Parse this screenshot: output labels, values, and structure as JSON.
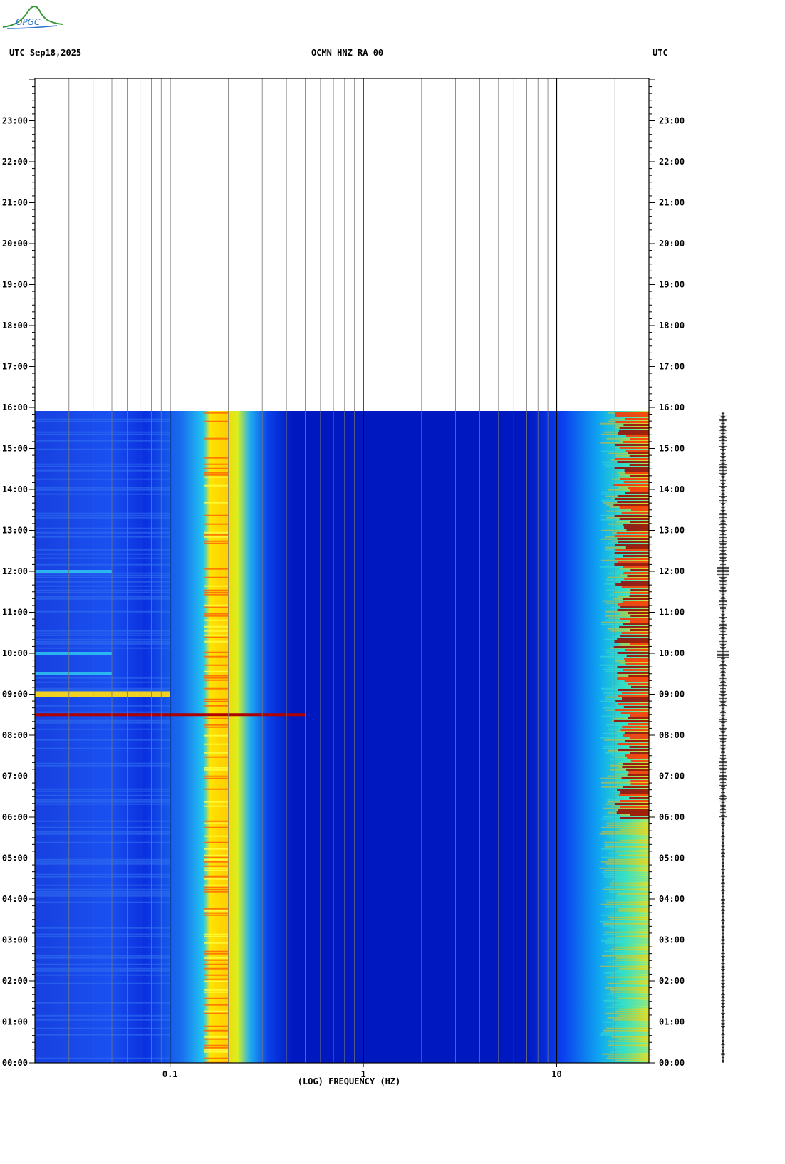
{
  "logo_text": "OPGC",
  "header": {
    "left": "UTC  Sep18,2025",
    "center": "OCMN HNZ RA 00",
    "right": "UTC"
  },
  "chart_data": {
    "type": "heatmap",
    "title": "OCMN HNZ RA 00",
    "date": "Sep18,2025",
    "timezone": "UTC",
    "xlabel": "(LOG) FREQUENCY (HZ)",
    "x_scale": "log",
    "xlim": [
      0.02,
      30
    ],
    "x_ticks": [
      {
        "value": 0.1,
        "label": "0.1"
      },
      {
        "value": 1,
        "label": "1"
      },
      {
        "value": 10,
        "label": "10"
      }
    ],
    "y_ticks": [
      "00:00",
      "01:00",
      "02:00",
      "03:00",
      "04:00",
      "05:00",
      "06:00",
      "07:00",
      "08:00",
      "09:00",
      "10:00",
      "11:00",
      "12:00",
      "13:00",
      "14:00",
      "15:00",
      "16:00",
      "17:00",
      "18:00",
      "19:00",
      "20:00",
      "21:00",
      "22:00",
      "23:00"
    ],
    "data_end_time": "15:53",
    "colormap": [
      "#00008f",
      "#0000ff",
      "#00c0ff",
      "#ffff00",
      "#ff4000",
      "#8f0000"
    ],
    "features": [
      {
        "desc": "microseism band",
        "freq_range": [
          0.13,
          0.22
        ],
        "time_range": [
          "00:00",
          "15:53"
        ],
        "level": "high"
      },
      {
        "desc": "broadband event",
        "freq_range": [
          0.02,
          0.5
        ],
        "time": "08:30",
        "level": "very high"
      },
      {
        "desc": "long period band",
        "freq_range": [
          0.02,
          0.1
        ],
        "time": "09:00",
        "level": "high"
      },
      {
        "desc": "cultural noise",
        "freq_range": [
          15,
          30
        ],
        "time_range": [
          "06:00",
          "15:53"
        ],
        "level": "very high"
      }
    ]
  }
}
